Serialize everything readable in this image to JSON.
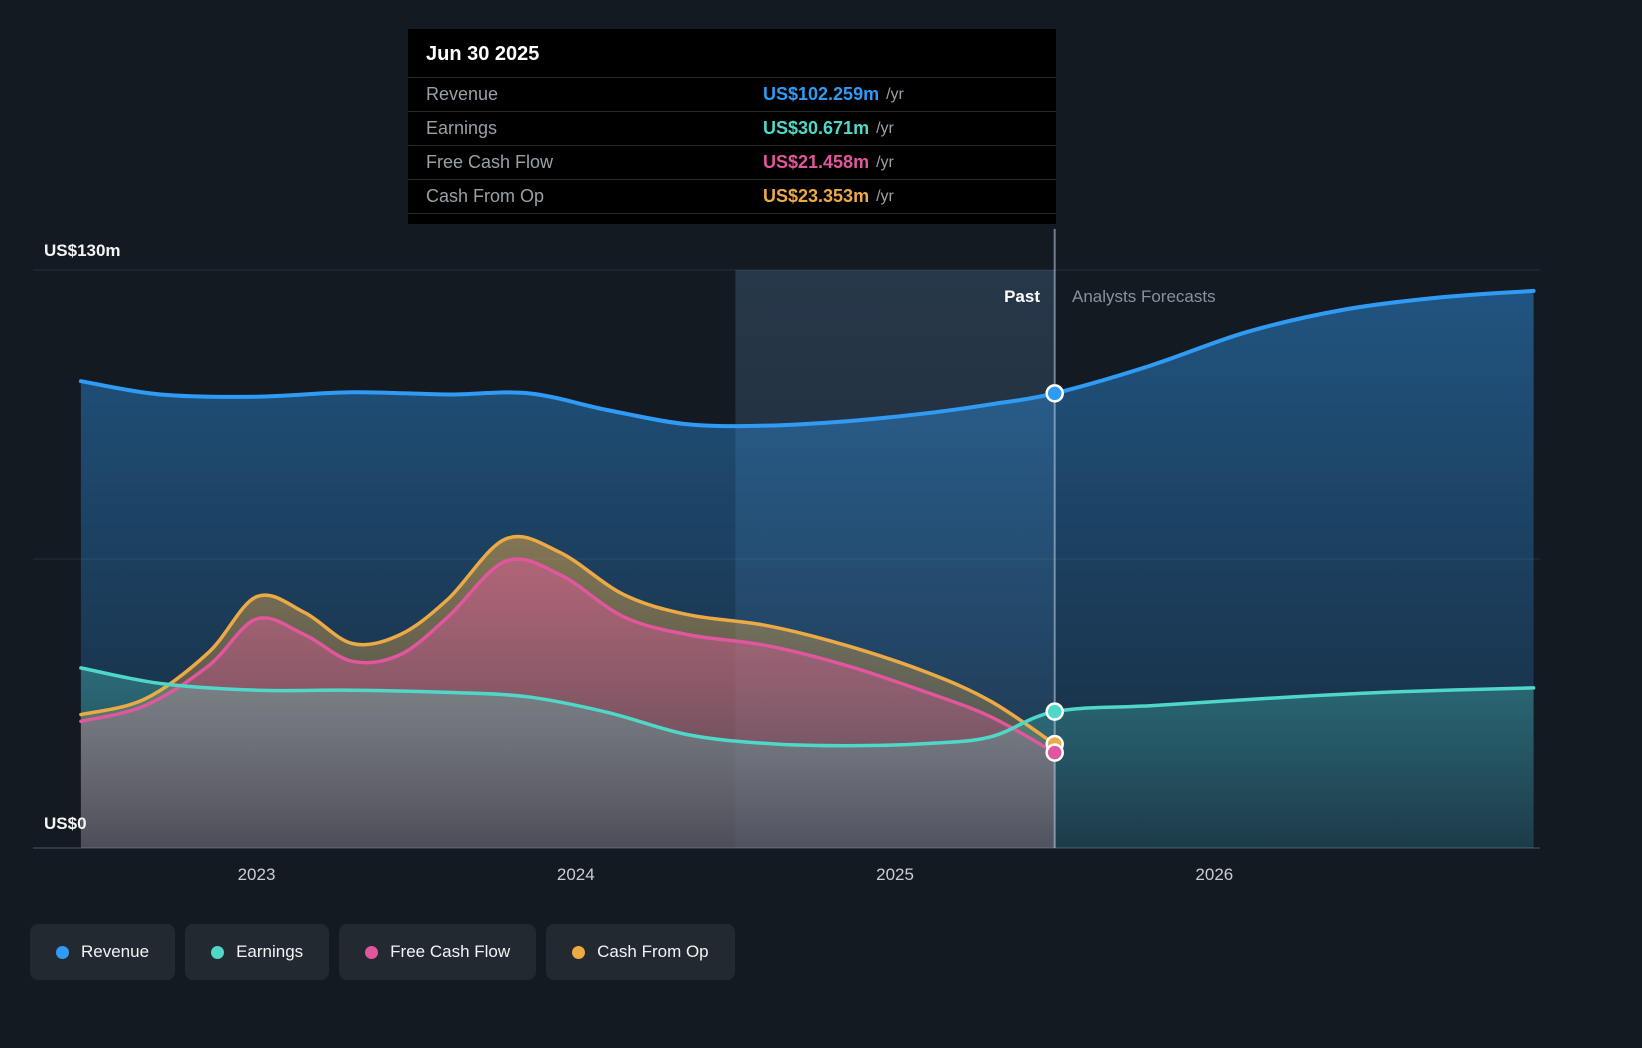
{
  "y_axis": {
    "top": "US$130m",
    "bottom": "US$0"
  },
  "labels": {
    "past": "Past",
    "forecast": "Analysts Forecasts"
  },
  "tooltip": {
    "title": "Jun 30 2025",
    "rows": [
      {
        "label": "Revenue",
        "value": "US$102.259m",
        "unit": "/yr",
        "color": "#2f9bf4"
      },
      {
        "label": "Earnings",
        "value": "US$30.671m",
        "unit": "/yr",
        "color": "#4fd8c8"
      },
      {
        "label": "Free Cash Flow",
        "value": "US$21.458m",
        "unit": "/yr",
        "color": "#e1569c"
      },
      {
        "label": "Cash From Op",
        "value": "US$23.353m",
        "unit": "/yr",
        "color": "#ecaa45"
      }
    ]
  },
  "legend": {
    "items": [
      {
        "label": "Revenue",
        "color": "#2f9bf4"
      },
      {
        "label": "Earnings",
        "color": "#4fd8c8"
      },
      {
        "label": "Free Cash Flow",
        "color": "#e1569c"
      },
      {
        "label": "Cash From Op",
        "color": "#ecaa45"
      }
    ]
  },
  "chart_data": {
    "type": "area",
    "title": "Revenue, Earnings, Free Cash Flow and Cash From Op history and analyst forecast",
    "x_domain": [
      2022.3,
      2027.02
    ],
    "y_domain": [
      0,
      130
    ],
    "y_gridlines": [
      130,
      65,
      0
    ],
    "x_ticks": [
      {
        "x": 2023,
        "label": "2023"
      },
      {
        "x": 2024,
        "label": "2024"
      },
      {
        "x": 2025,
        "label": "2025"
      },
      {
        "x": 2026,
        "label": "2026"
      }
    ],
    "divider_x": 2025.5,
    "divider_date": "Jun 30 2025",
    "highlight_band": [
      2024.5,
      2025.5
    ],
    "units": "US$ millions per year",
    "series": [
      {
        "name": "Revenue",
        "color": "#2f9bf4",
        "width": 4,
        "fill_opacity": [
          0.45,
          0.12
        ],
        "marker_x": 2025.5,
        "marker_value": 102.259,
        "points": [
          [
            2022.45,
            105
          ],
          [
            2022.7,
            102
          ],
          [
            2023.0,
            101.5
          ],
          [
            2023.3,
            102.5
          ],
          [
            2023.6,
            102
          ],
          [
            2023.85,
            102.3
          ],
          [
            2024.1,
            98.5
          ],
          [
            2024.35,
            95.3
          ],
          [
            2024.6,
            95
          ],
          [
            2024.85,
            96
          ],
          [
            2025.1,
            97.8
          ],
          [
            2025.3,
            99.8
          ],
          [
            2025.5,
            102.259
          ],
          [
            2025.8,
            108.5
          ],
          [
            2026.1,
            116
          ],
          [
            2026.4,
            121
          ],
          [
            2026.7,
            123.8
          ],
          [
            2027.0,
            125.3
          ]
        ]
      },
      {
        "name": "Cash From Op",
        "color": "#ecaa45",
        "width": 3.5,
        "fill_opacity": [
          0.5,
          0.12
        ],
        "marker_x": 2025.5,
        "marker_value": 23.353,
        "points": [
          [
            2022.45,
            30
          ],
          [
            2022.65,
            33.5
          ],
          [
            2022.85,
            44
          ],
          [
            2023.0,
            56.5
          ],
          [
            2023.15,
            53
          ],
          [
            2023.3,
            46
          ],
          [
            2023.45,
            48
          ],
          [
            2023.6,
            56
          ],
          [
            2023.78,
            69.5
          ],
          [
            2023.95,
            66.5
          ],
          [
            2024.15,
            57
          ],
          [
            2024.35,
            52.5
          ],
          [
            2024.6,
            50
          ],
          [
            2024.85,
            45.5
          ],
          [
            2025.1,
            39.5
          ],
          [
            2025.3,
            33
          ],
          [
            2025.5,
            23.353
          ]
        ]
      },
      {
        "name": "Free Cash Flow",
        "color": "#e1569c",
        "width": 3.5,
        "fill_opacity": [
          0.5,
          0.15
        ],
        "marker_x": 2025.5,
        "marker_value": 21.458,
        "points": [
          [
            2022.45,
            28.5
          ],
          [
            2022.65,
            32
          ],
          [
            2022.85,
            41
          ],
          [
            2023.0,
            51.5
          ],
          [
            2023.15,
            48
          ],
          [
            2023.3,
            42
          ],
          [
            2023.45,
            43.5
          ],
          [
            2023.6,
            52
          ],
          [
            2023.78,
            64.5
          ],
          [
            2023.95,
            61.5
          ],
          [
            2024.15,
            52
          ],
          [
            2024.35,
            48
          ],
          [
            2024.6,
            45.5
          ],
          [
            2024.85,
            41
          ],
          [
            2025.1,
            35
          ],
          [
            2025.3,
            29.5
          ],
          [
            2025.5,
            21.458
          ]
        ]
      },
      {
        "name": "Earnings",
        "color": "#4fd8c8",
        "width": 3.5,
        "fill_opacity": [
          0.32,
          0.1
        ],
        "marker_x": 2025.5,
        "marker_value": 30.671,
        "points": [
          [
            2022.45,
            40.5
          ],
          [
            2022.7,
            37
          ],
          [
            2023.0,
            35.5
          ],
          [
            2023.3,
            35.5
          ],
          [
            2023.6,
            35
          ],
          [
            2023.85,
            34
          ],
          [
            2024.1,
            30.5
          ],
          [
            2024.35,
            25.5
          ],
          [
            2024.6,
            23.5
          ],
          [
            2024.85,
            23
          ],
          [
            2025.1,
            23.5
          ],
          [
            2025.3,
            25
          ],
          [
            2025.5,
            30.671
          ],
          [
            2025.8,
            32
          ],
          [
            2026.2,
            33.8
          ],
          [
            2026.6,
            35.2
          ],
          [
            2027.0,
            36
          ]
        ]
      }
    ]
  }
}
